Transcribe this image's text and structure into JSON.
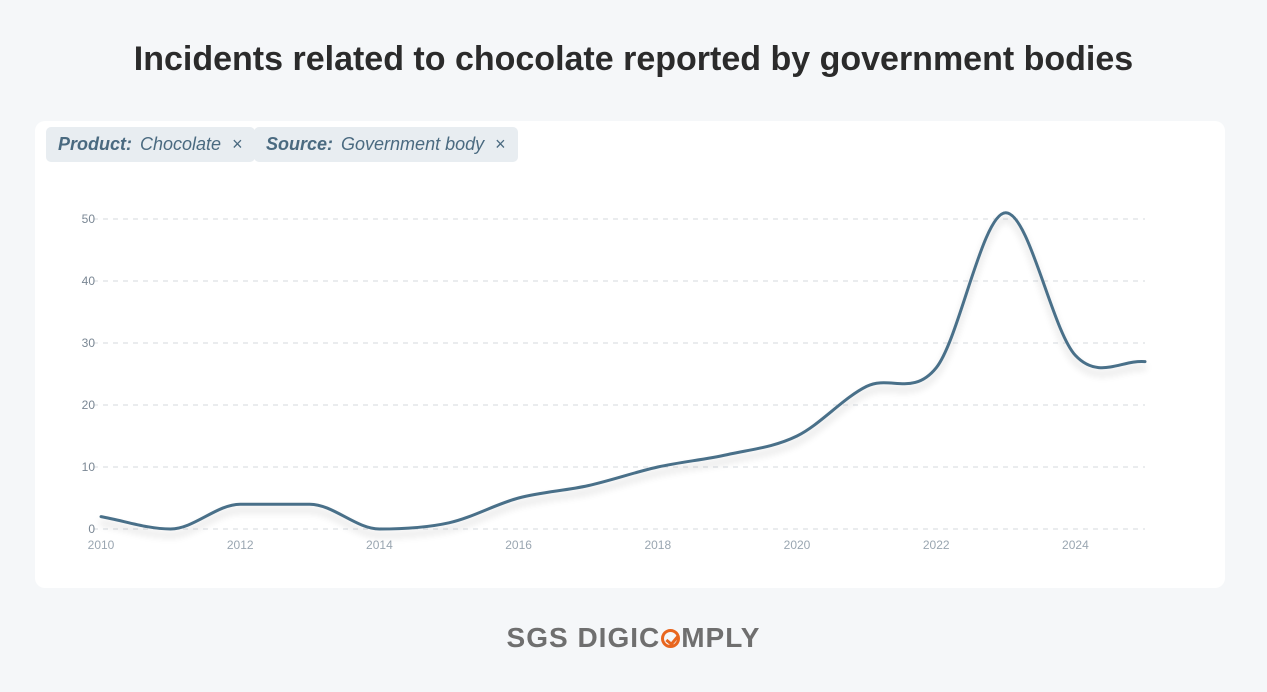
{
  "header": {
    "title": "Incidents related to chocolate reported by government bodies"
  },
  "filters": [
    {
      "key": "Product:",
      "value": "Chocolate",
      "remove": "×"
    },
    {
      "key": "Source:",
      "value": "Government body",
      "remove": "×"
    }
  ],
  "chart_data": {
    "type": "line",
    "title": "Incidents related to chocolate reported by government bodies",
    "xlabel": "",
    "ylabel": "",
    "x": [
      2010,
      2011,
      2012,
      2013,
      2014,
      2015,
      2016,
      2017,
      2018,
      2019,
      2020,
      2021,
      2022,
      2023,
      2024,
      2025
    ],
    "series": [
      {
        "name": "Incidents",
        "values": [
          2,
          0,
          4,
          4,
          0,
          1,
          5,
          7,
          10,
          12,
          15,
          23,
          26,
          51,
          28,
          27
        ],
        "color": "#4a6f89"
      }
    ],
    "xticks": [
      "2010",
      "2012",
      "2014",
      "2016",
      "2018",
      "2020",
      "2022",
      "2024"
    ],
    "yticks": [
      "0",
      "10",
      "20",
      "30",
      "40",
      "50"
    ],
    "xlim": [
      2010,
      2025
    ],
    "ylim": [
      0,
      50
    ],
    "grid": true
  },
  "footer": {
    "brand_left": "SGS DIGIC",
    "brand_right": "MPLY",
    "accent": "#e8661f"
  }
}
